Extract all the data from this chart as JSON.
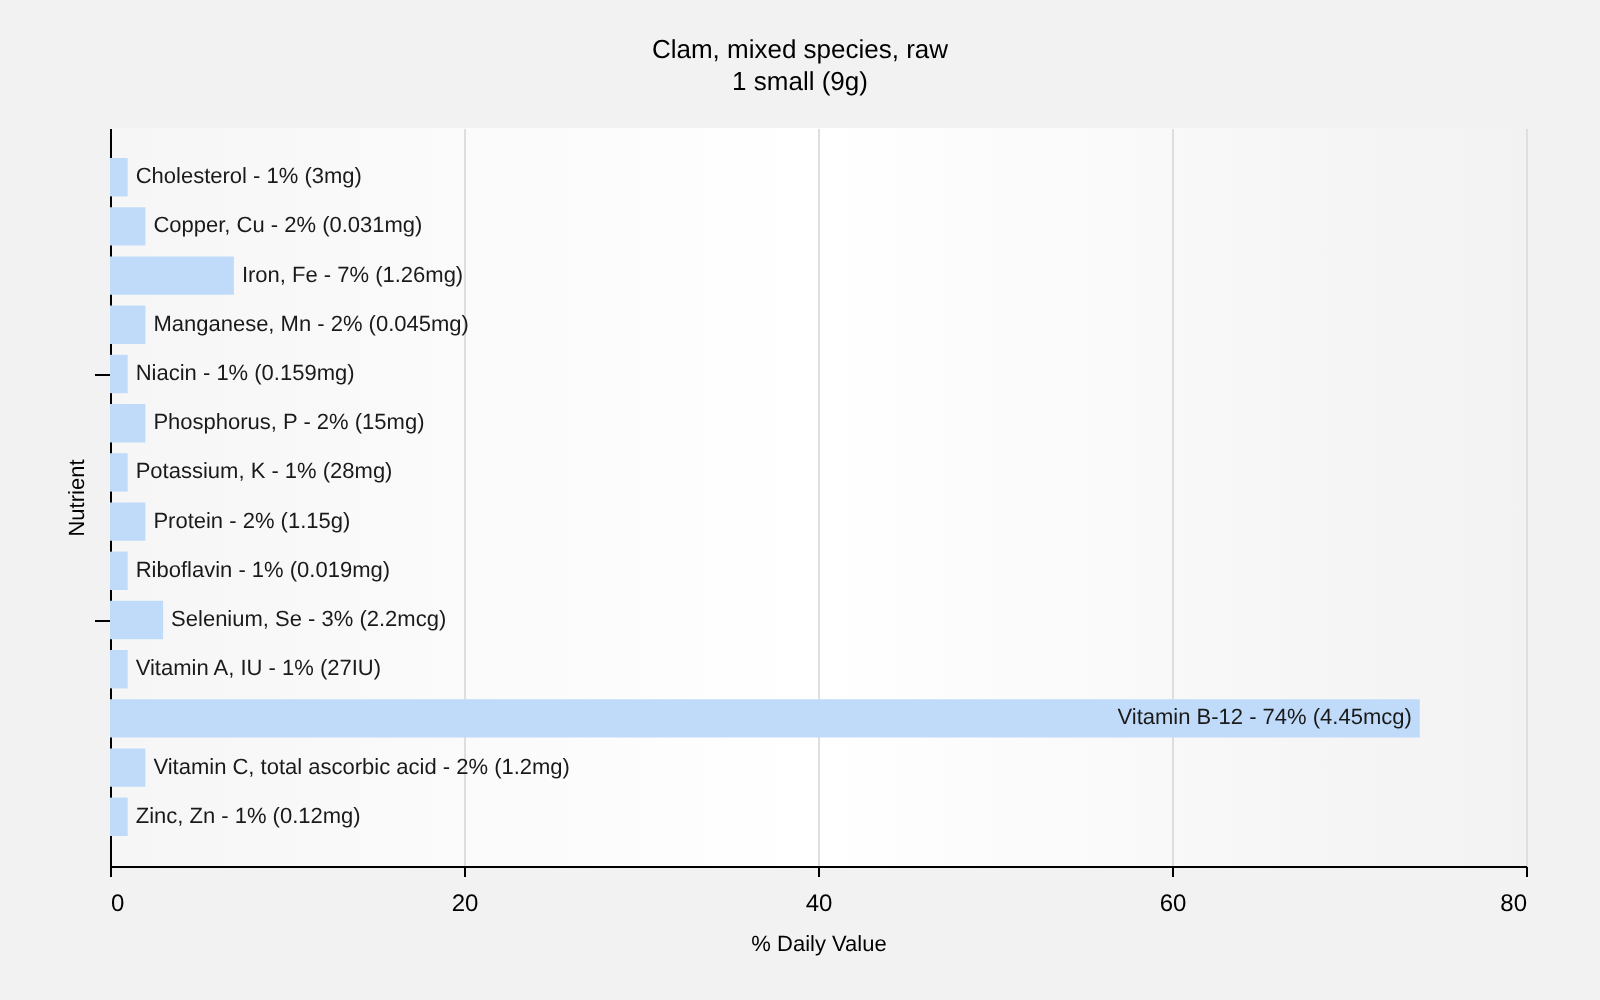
{
  "chart_data": {
    "type": "bar",
    "orientation": "horizontal",
    "title": "Clam, mixed species, raw",
    "subtitle": "1 small (9g)",
    "xlabel": "% Daily Value",
    "ylabel": "Nutrient",
    "categories": [
      "Cholesterol - 1% (3mg)",
      "Copper, Cu - 2% (0.031mg)",
      "Iron, Fe - 7% (1.26mg)",
      "Manganese, Mn - 2% (0.045mg)",
      "Niacin - 1% (0.159mg)",
      "Phosphorus, P - 2% (15mg)",
      "Potassium, K - 1% (28mg)",
      "Protein - 2% (1.15g)",
      "Riboflavin - 1% (0.019mg)",
      "Selenium, Se - 3% (2.2mcg)",
      "Vitamin A, IU - 1% (27IU)",
      "Vitamin B-12 - 74% (4.45mcg)",
      "Vitamin C, total ascorbic acid - 2% (1.2mg)",
      "Zinc, Zn - 1% (0.12mg)"
    ],
    "values": [
      1,
      2,
      7,
      2,
      1,
      2,
      1,
      2,
      1,
      3,
      1,
      74,
      2,
      1
    ],
    "color": "#c0dbf9",
    "xlim": [
      0,
      80
    ],
    "xticks": [
      0,
      20,
      40,
      60,
      80
    ],
    "grid": "x"
  }
}
